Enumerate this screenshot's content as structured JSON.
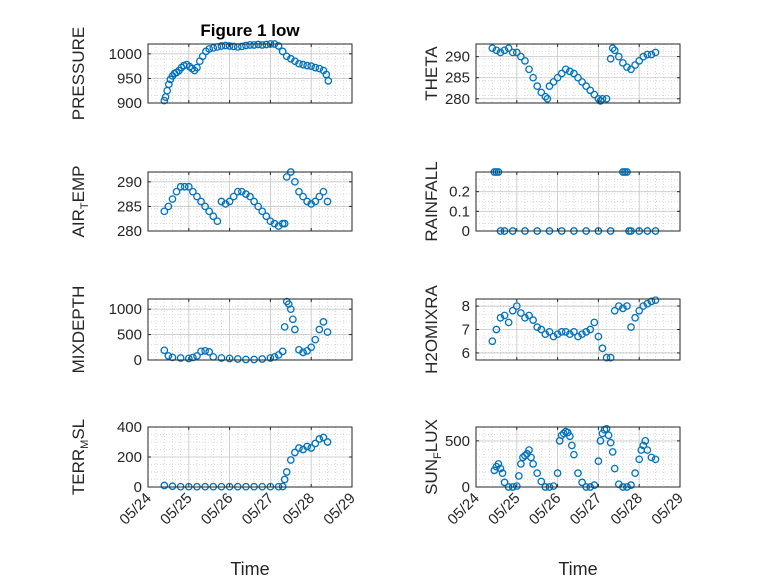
{
  "chart_data": [
    {
      "type": "scatter",
      "title": "Figure 1 low",
      "ylabel": "PRESSURE",
      "ylim": [
        900,
        1020
      ],
      "yticks": [
        900,
        950,
        1000
      ],
      "xlim": [
        "05/24",
        "05/29"
      ],
      "series": [
        {
          "x": [
            0.4,
            0.43,
            0.47,
            0.51,
            0.55,
            0.6,
            0.65,
            0.7,
            0.76,
            0.82,
            0.88,
            0.95,
            1.02,
            1.08,
            1.14,
            1.2,
            1.27,
            1.34,
            1.42,
            1.5,
            1.6,
            1.7,
            1.8,
            1.9,
            2.0,
            2.1,
            2.2,
            2.3,
            2.4,
            2.5,
            2.6,
            2.7,
            2.8,
            2.9,
            3.0,
            3.1,
            3.2,
            3.3,
            3.4,
            3.5,
            3.6,
            3.7,
            3.8,
            3.9,
            4.0,
            4.1,
            4.2,
            4.3,
            4.37,
            4.42
          ],
          "y": [
            905,
            912,
            925,
            938,
            948,
            955,
            960,
            962,
            966,
            972,
            976,
            978,
            974,
            970,
            966,
            972,
            985,
            995,
            1005,
            1010,
            1012,
            1014,
            1016,
            1017,
            1016,
            1015,
            1014,
            1015,
            1017,
            1018,
            1018,
            1019,
            1018,
            1019,
            1020,
            1020,
            1016,
            1005,
            995,
            990,
            985,
            980,
            978,
            976,
            975,
            972,
            970,
            966,
            958,
            945
          ]
        }
      ]
    },
    {
      "type": "scatter",
      "ylabel": "THETA",
      "ylim": [
        279,
        293
      ],
      "yticks": [
        280,
        285,
        290
      ],
      "xlim": [
        "05/24",
        "05/29"
      ],
      "series": [
        {
          "x": [
            0.4,
            0.5,
            0.6,
            0.7,
            0.8,
            0.9,
            1.0,
            1.1,
            1.2,
            1.3,
            1.4,
            1.5,
            1.6,
            1.7,
            1.75,
            1.8,
            1.9,
            2.0,
            2.1,
            2.2,
            2.3,
            2.4,
            2.5,
            2.6,
            2.7,
            2.8,
            2.9,
            3.0,
            3.05,
            3.1,
            3.2,
            3.3,
            3.35,
            3.4,
            3.5,
            3.6,
            3.7,
            3.8,
            3.9,
            4.0,
            4.1,
            4.2,
            4.3,
            4.4
          ],
          "y": [
            292,
            291.5,
            291,
            291.5,
            292,
            291,
            291,
            290,
            289,
            287,
            285,
            283,
            281.5,
            280.5,
            280,
            283,
            284,
            285,
            286,
            287,
            286.5,
            286,
            285,
            284,
            283,
            282,
            281,
            280,
            279.5,
            280,
            280,
            289.5,
            292,
            291.5,
            290,
            288.5,
            287.5,
            287,
            288,
            289,
            290,
            290.5,
            290.5,
            291
          ]
        }
      ]
    },
    {
      "type": "scatter",
      "ylabel": "AIR_T_EMP",
      "ylim": [
        280,
        292
      ],
      "yticks": [
        280,
        285,
        290
      ],
      "xlim": [
        "05/24",
        "05/29"
      ],
      "series": [
        {
          "x": [
            0.4,
            0.5,
            0.6,
            0.7,
            0.8,
            0.9,
            1.0,
            1.1,
            1.2,
            1.3,
            1.4,
            1.5,
            1.6,
            1.7,
            1.8,
            1.9,
            2.0,
            2.1,
            2.2,
            2.3,
            2.4,
            2.5,
            2.6,
            2.7,
            2.8,
            2.9,
            3.0,
            3.1,
            3.2,
            3.3,
            3.35,
            3.4,
            3.5,
            3.6,
            3.7,
            3.8,
            3.9,
            4.0,
            4.1,
            4.2,
            4.3,
            4.4
          ],
          "y": [
            284,
            285,
            286.5,
            288,
            289,
            289,
            289,
            288,
            287,
            286,
            285,
            284,
            283,
            282,
            286,
            285.5,
            286,
            287,
            288,
            288,
            287.5,
            287,
            286,
            285,
            284,
            283,
            282,
            281.5,
            281,
            281.5,
            281.5,
            291,
            292,
            290,
            288,
            287,
            286,
            285.5,
            286,
            287,
            288,
            286
          ]
        }
      ]
    },
    {
      "type": "scatter",
      "ylabel": "RAINFALL",
      "ylim": [
        0,
        0.3
      ],
      "yticks": [
        0,
        0.1,
        0.2
      ],
      "xlim": [
        "05/24",
        "05/29"
      ],
      "series": [
        {
          "x": [
            0.45,
            0.5,
            0.55,
            0.6,
            0.7,
            0.9,
            1.2,
            1.5,
            1.8,
            2.1,
            2.4,
            2.7,
            3.0,
            3.3,
            3.6,
            3.65,
            3.7,
            3.75,
            3.8,
            4.0,
            4.2,
            4.4
          ],
          "y": [
            0.3,
            0.3,
            0.3,
            0,
            0,
            0,
            0,
            0,
            0,
            0,
            0,
            0,
            0,
            0,
            0.3,
            0.3,
            0.3,
            0,
            0,
            0,
            0,
            0
          ]
        }
      ]
    },
    {
      "type": "scatter",
      "ylabel": "MIXDEPTH",
      "ylim": [
        0,
        1200
      ],
      "yticks": [
        0,
        500,
        1000
      ],
      "xlim": [
        "05/24",
        "05/29"
      ],
      "series": [
        {
          "x": [
            0.4,
            0.5,
            0.6,
            0.8,
            1.0,
            1.1,
            1.2,
            1.3,
            1.4,
            1.5,
            1.6,
            1.8,
            2.0,
            2.2,
            2.4,
            2.6,
            2.8,
            3.0,
            3.1,
            3.2,
            3.3,
            3.35,
            3.4,
            3.45,
            3.5,
            3.55,
            3.6,
            3.7,
            3.8,
            3.9,
            4.0,
            4.1,
            4.2,
            4.3,
            4.4
          ],
          "y": [
            190,
            80,
            50,
            40,
            30,
            50,
            80,
            170,
            180,
            160,
            60,
            40,
            30,
            20,
            10,
            10,
            20,
            40,
            60,
            100,
            170,
            650,
            1150,
            1100,
            1000,
            800,
            600,
            200,
            150,
            180,
            250,
            400,
            600,
            750,
            550
          ]
        }
      ]
    },
    {
      "type": "scatter",
      "ylabel": "H2OMIXRA",
      "ylim": [
        5.7,
        8.3
      ],
      "yticks": [
        6,
        7,
        8
      ],
      "xlim": [
        "05/24",
        "05/29"
      ],
      "series": [
        {
          "x": [
            0.4,
            0.5,
            0.6,
            0.7,
            0.8,
            0.9,
            1.0,
            1.1,
            1.2,
            1.3,
            1.4,
            1.5,
            1.6,
            1.7,
            1.8,
            1.9,
            2.0,
            2.1,
            2.2,
            2.3,
            2.4,
            2.5,
            2.6,
            2.7,
            2.8,
            2.9,
            3.0,
            3.1,
            3.2,
            3.3,
            3.4,
            3.5,
            3.6,
            3.7,
            3.8,
            3.9,
            4.0,
            4.1,
            4.2,
            4.3,
            4.4
          ],
          "y": [
            6.5,
            7.0,
            7.5,
            7.6,
            7.3,
            7.8,
            8.0,
            7.7,
            7.5,
            7.6,
            7.4,
            7.1,
            7.0,
            6.8,
            6.9,
            6.7,
            6.8,
            6.9,
            6.9,
            6.8,
            6.9,
            6.7,
            6.8,
            6.9,
            7.0,
            7.3,
            6.7,
            6.2,
            5.8,
            5.8,
            7.8,
            8.0,
            7.9,
            8.0,
            7.1,
            7.5,
            7.8,
            8.0,
            8.1,
            8.2,
            8.25
          ]
        }
      ]
    },
    {
      "type": "scatter",
      "ylabel": "TERR_M_SL",
      "ylim": [
        0,
        400
      ],
      "yticks": [
        0,
        200,
        400
      ],
      "xlim": [
        "05/24",
        "05/29"
      ],
      "xticks": [
        "05/24",
        "05/25",
        "05/26",
        "05/27",
        "05/28",
        "05/29"
      ],
      "xlabel": "Time",
      "series": [
        {
          "x": [
            0.4,
            0.6,
            0.8,
            1.0,
            1.2,
            1.4,
            1.6,
            1.8,
            2.0,
            2.2,
            2.4,
            2.6,
            2.8,
            3.0,
            3.2,
            3.3,
            3.35,
            3.4,
            3.5,
            3.6,
            3.7,
            3.8,
            3.9,
            4.0,
            4.1,
            4.2,
            4.3,
            4.4
          ],
          "y": [
            10,
            5,
            2,
            2,
            2,
            2,
            2,
            2,
            2,
            2,
            2,
            2,
            2,
            2,
            2,
            3,
            50,
            100,
            180,
            230,
            260,
            250,
            270,
            260,
            290,
            320,
            330,
            300
          ]
        }
      ]
    },
    {
      "type": "scatter",
      "ylabel": "SUN_F_LUX",
      "ylim": [
        0,
        650
      ],
      "yticks": [
        0,
        500
      ],
      "xlim": [
        "05/24",
        "05/29"
      ],
      "xticks": [
        "05/24",
        "05/25",
        "05/26",
        "05/27",
        "05/28",
        "05/29"
      ],
      "xlabel": "Time",
      "series": [
        {
          "x": [
            0.45,
            0.5,
            0.55,
            0.6,
            0.65,
            0.7,
            0.8,
            0.9,
            1.0,
            1.05,
            1.1,
            1.15,
            1.2,
            1.25,
            1.3,
            1.35,
            1.4,
            1.5,
            1.6,
            1.7,
            1.8,
            1.9,
            2.0,
            2.05,
            2.1,
            2.15,
            2.2,
            2.25,
            2.3,
            2.35,
            2.4,
            2.5,
            2.6,
            2.7,
            2.8,
            2.9,
            3.0,
            3.05,
            3.1,
            3.15,
            3.2,
            3.25,
            3.3,
            3.35,
            3.4,
            3.5,
            3.6,
            3.7,
            3.8,
            3.9,
            4.0,
            4.05,
            4.1,
            4.15,
            4.2,
            4.3,
            4.4
          ],
          "y": [
            180,
            220,
            250,
            200,
            150,
            50,
            0,
            0,
            10,
            120,
            250,
            320,
            340,
            360,
            400,
            320,
            250,
            150,
            60,
            0,
            0,
            10,
            150,
            500,
            560,
            580,
            600,
            590,
            550,
            450,
            350,
            150,
            50,
            0,
            0,
            20,
            280,
            500,
            580,
            620,
            630,
            560,
            480,
            380,
            200,
            30,
            0,
            0,
            20,
            150,
            300,
            400,
            450,
            500,
            400,
            320,
            300
          ]
        }
      ]
    }
  ]
}
